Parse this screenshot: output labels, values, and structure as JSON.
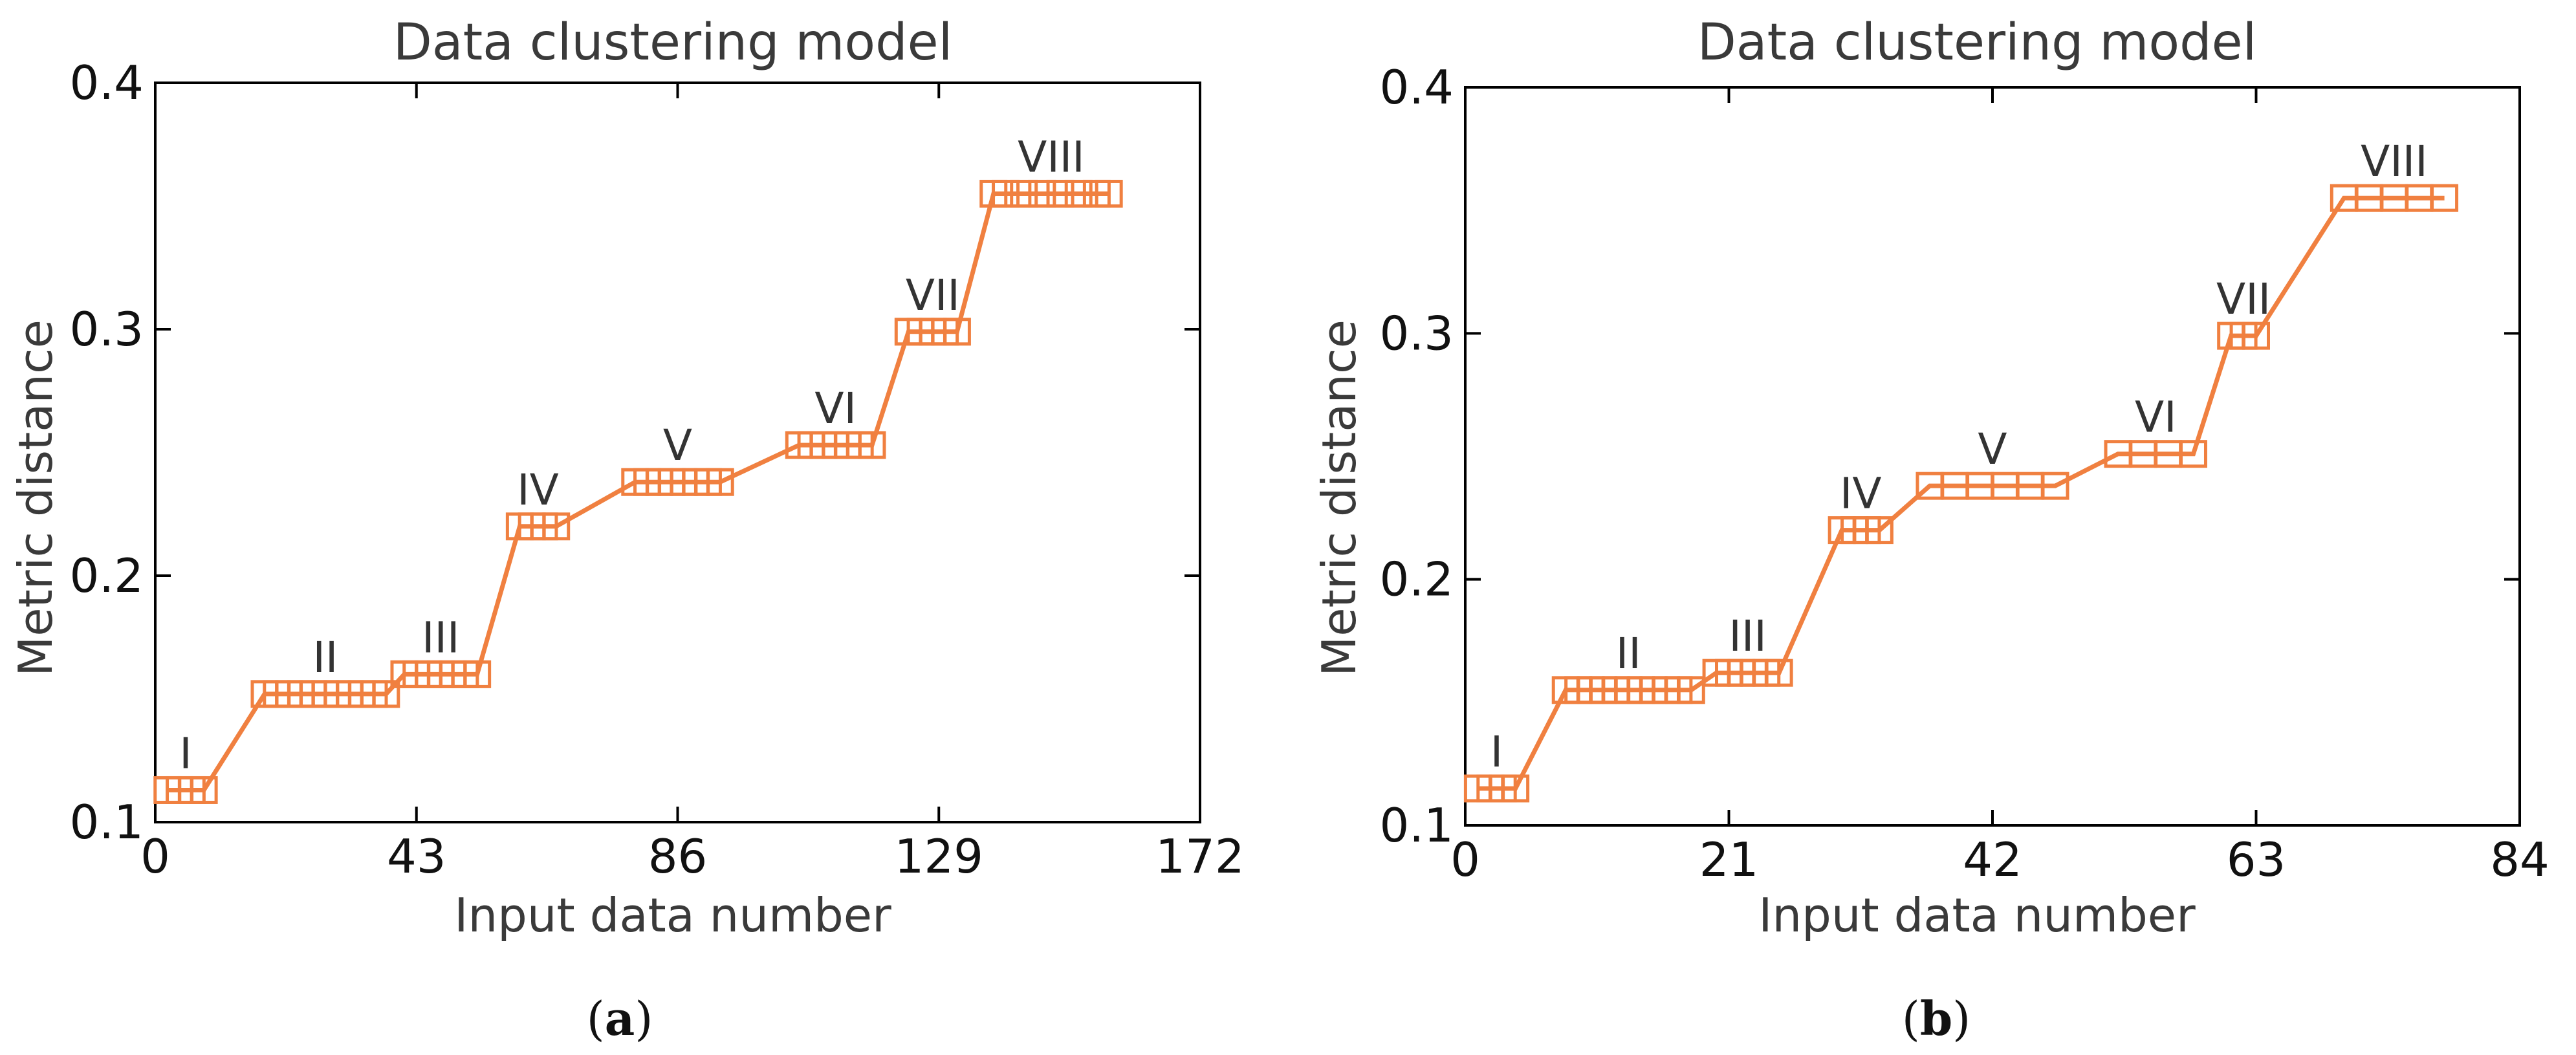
{
  "series_color": "#f08040",
  "chart_data": [
    {
      "type": "line",
      "panel_label": "a",
      "title": "Data clustering model",
      "xlabel": "Input data number",
      "ylabel": "Metric distance",
      "xlim": [
        0,
        172
      ],
      "ylim": [
        0.1,
        0.4
      ],
      "xticks": [
        0,
        43,
        86,
        129,
        172
      ],
      "yticks": [
        0.1,
        0.2,
        0.3,
        0.4
      ],
      "xtick_labels": [
        "0",
        "43",
        "86",
        "129",
        "172"
      ],
      "ytick_labels": [
        "0.1",
        "0.2",
        "0.3",
        "0.4"
      ],
      "marker": "square",
      "clusters": [
        {
          "label": "I",
          "y": 0.113,
          "x": [
            2,
            4,
            6,
            8
          ]
        },
        {
          "label": "II",
          "y": 0.152,
          "x": [
            18,
            20,
            22,
            24,
            26,
            28,
            30,
            32,
            34,
            36,
            38
          ]
        },
        {
          "label": "III",
          "y": 0.16,
          "x": [
            41,
            43,
            45,
            47,
            49,
            51,
            53
          ]
        },
        {
          "label": "IV",
          "y": 0.22,
          "x": [
            60,
            62,
            64,
            66
          ]
        },
        {
          "label": "V",
          "y": 0.238,
          "x": [
            79,
            81,
            83,
            85,
            87,
            89,
            91,
            93
          ]
        },
        {
          "label": "VI",
          "y": 0.253,
          "x": [
            106,
            108,
            110,
            112,
            114,
            116,
            118
          ]
        },
        {
          "label": "VII",
          "y": 0.299,
          "x": [
            124,
            126,
            128,
            130,
            132
          ]
        },
        {
          "label": "VIII",
          "y": 0.355,
          "x": [
            138,
            140,
            143,
            146,
            149,
            152,
            155,
            157
          ]
        }
      ]
    },
    {
      "type": "line",
      "panel_label": "b",
      "title": "Data clustering model",
      "xlabel": "Input data number",
      "ylabel": "Metric distance",
      "xlim": [
        0,
        84
      ],
      "ylim": [
        0.1,
        0.4
      ],
      "xticks": [
        0,
        21,
        42,
        63,
        84
      ],
      "yticks": [
        0.1,
        0.2,
        0.3,
        0.4
      ],
      "xtick_labels": [
        "0",
        "21",
        "42",
        "63",
        "84"
      ],
      "ytick_labels": [
        "0.1",
        "0.2",
        "0.3",
        "0.4"
      ],
      "marker": "square",
      "clusters": [
        {
          "label": "I",
          "y": 0.115,
          "x": [
            1,
            2,
            3,
            4
          ]
        },
        {
          "label": "II",
          "y": 0.155,
          "x": [
            8,
            9,
            10,
            11,
            12,
            13,
            14,
            15,
            16,
            17,
            18
          ]
        },
        {
          "label": "III",
          "y": 0.162,
          "x": [
            20,
            21,
            22,
            23,
            24,
            25
          ]
        },
        {
          "label": "IV",
          "y": 0.22,
          "x": [
            30,
            31,
            32,
            33
          ]
        },
        {
          "label": "V",
          "y": 0.238,
          "x": [
            37,
            39,
            41,
            43,
            45,
            47
          ]
        },
        {
          "label": "VI",
          "y": 0.251,
          "x": [
            52,
            54,
            56,
            58
          ]
        },
        {
          "label": "VII",
          "y": 0.299,
          "x": [
            61,
            62,
            63
          ]
        },
        {
          "label": "VIII",
          "y": 0.355,
          "x": [
            70,
            72,
            74,
            76,
            78
          ]
        }
      ]
    }
  ],
  "captions": [
    {
      "open": "(",
      "letter": "a",
      "close": ")"
    },
    {
      "open": "(",
      "letter": "b",
      "close": ")"
    }
  ]
}
